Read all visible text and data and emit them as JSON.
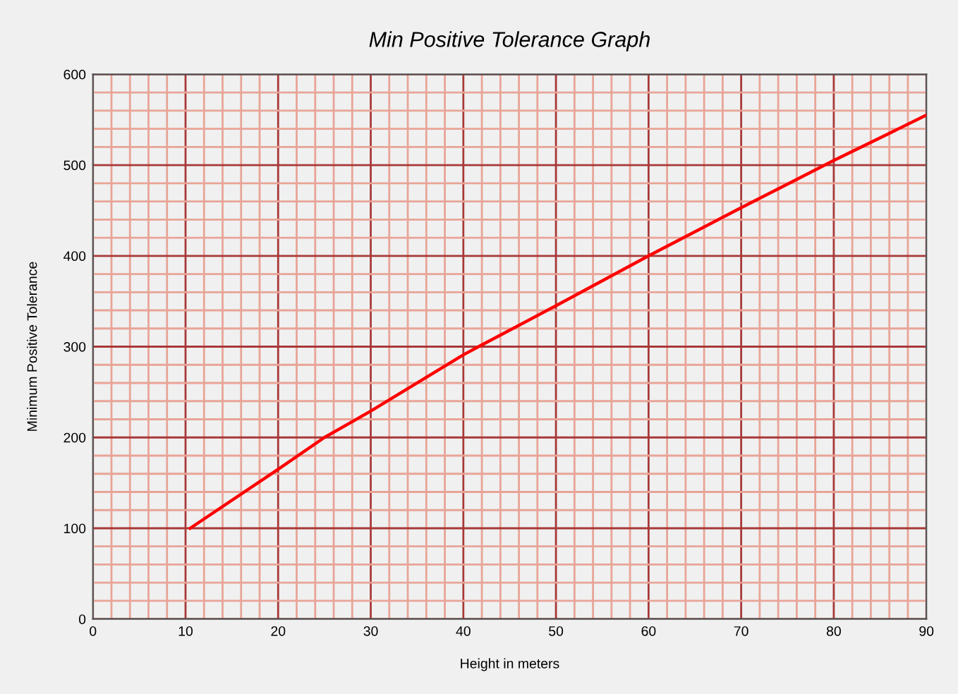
{
  "chart_data": {
    "type": "line",
    "title": "Min Positive Tolerance Graph",
    "xlabel": "Height in meters",
    "ylabel": "Minimum Positive Tolerance",
    "series": [
      {
        "color": "#ff0000",
        "x": [
          10.5,
          20,
          25,
          30,
          40,
          42,
          50,
          60,
          70,
          80,
          90
        ],
        "values": [
          100,
          165,
          200,
          229,
          291,
          302,
          345,
          400,
          453,
          505,
          555
        ]
      }
    ],
    "xlim": [
      0,
      90
    ],
    "xticks": [
      0,
      {
        "value": 2,
        "label": null
      },
      {
        "value": 4,
        "label": null
      },
      {
        "value": 6,
        "label": null
      },
      {
        "value": 8,
        "label": null
      },
      10,
      {
        "value": 12,
        "label": null
      },
      {
        "value": 14,
        "label": null
      },
      {
        "value": 16,
        "label": null
      },
      {
        "value": 18,
        "label": null
      },
      20,
      {
        "value": 22,
        "label": null
      },
      {
        "value": 24,
        "label": null
      },
      {
        "value": 26,
        "label": null
      },
      {
        "value": 28,
        "label": null
      },
      30,
      {
        "value": 32,
        "label": null
      },
      {
        "value": 34,
        "label": null
      },
      {
        "value": 36,
        "label": null
      },
      {
        "value": 38,
        "label": null
      },
      40,
      {
        "value": 42,
        "label": null
      },
      {
        "value": 44,
        "label": null
      },
      {
        "value": 46,
        "label": null
      },
      {
        "value": 48,
        "label": null
      },
      50,
      {
        "value": 52,
        "label": null
      },
      {
        "value": 54,
        "label": null
      },
      {
        "value": 56,
        "label": null
      },
      {
        "value": 58,
        "label": null
      },
      60,
      {
        "value": 62,
        "label": null
      },
      {
        "value": 64,
        "label": null
      },
      {
        "value": 66,
        "label": null
      },
      {
        "value": 68,
        "label": null
      },
      70,
      {
        "value": 72,
        "label": null
      },
      {
        "value": 74,
        "label": null
      },
      {
        "value": 76,
        "label": null
      },
      {
        "value": 78,
        "label": null
      },
      80,
      {
        "value": 82,
        "label": null
      },
      {
        "value": 84,
        "label": null
      },
      {
        "value": 86,
        "label": null
      },
      {
        "value": 88,
        "label": null
      },
      90
    ],
    "ylim": [
      0,
      600
    ],
    "yticks": [
      0,
      {
        "value": 20,
        "label": null
      },
      {
        "value": 40,
        "label": null
      },
      {
        "value": 60,
        "label": null
      },
      {
        "value": 80,
        "label": null
      },
      100,
      {
        "value": 120,
        "label": null
      },
      {
        "value": 140,
        "label": null
      },
      {
        "value": 160,
        "label": null
      },
      {
        "value": 180,
        "label": null
      },
      200,
      {
        "value": 220,
        "label": null
      },
      {
        "value": 240,
        "label": null
      },
      {
        "value": 260,
        "label": null
      },
      {
        "value": 280,
        "label": null
      },
      300,
      {
        "value": 320,
        "label": null
      },
      {
        "value": 340,
        "label": null
      },
      {
        "value": 360,
        "label": null
      },
      {
        "value": 380,
        "label": null
      },
      400,
      {
        "value": 420,
        "label": null
      },
      {
        "value": 440,
        "label": null
      },
      {
        "value": 460,
        "label": null
      },
      {
        "value": 480,
        "label": null
      },
      500,
      {
        "value": 520,
        "label": null
      },
      {
        "value": 540,
        "label": null
      },
      {
        "value": 560,
        "label": null
      },
      {
        "value": 580,
        "label": null
      },
      600
    ],
    "grid": true,
    "legend": false,
    "marker": "none",
    "line_style": "solid"
  }
}
